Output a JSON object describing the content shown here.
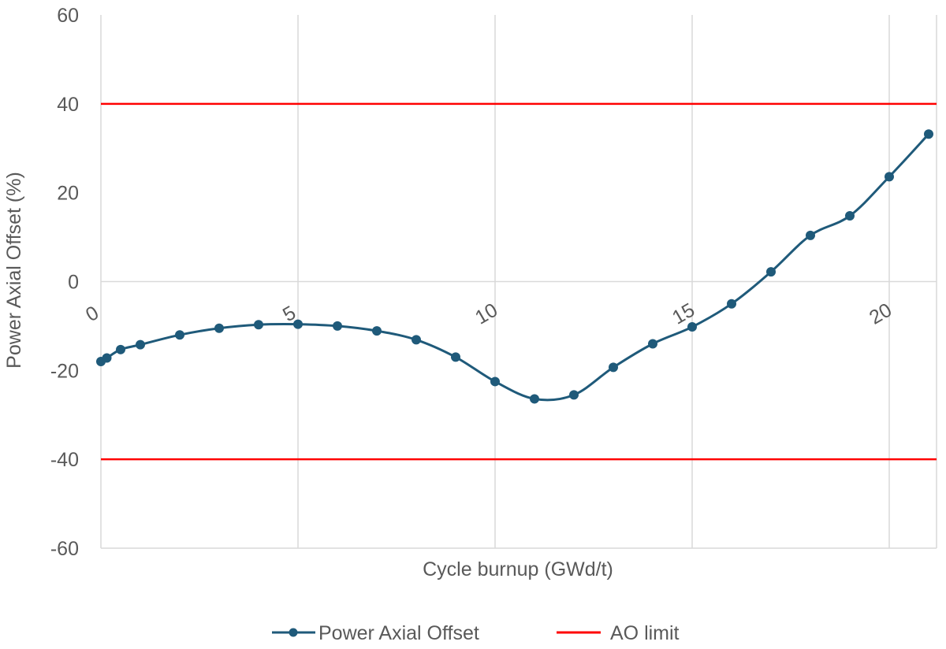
{
  "chart_data": {
    "type": "line",
    "title": "",
    "xlabel": "Cycle burnup (GWd/t)",
    "ylabel": "Power Axial Offset (%)",
    "xlim": [
      0,
      21.2
    ],
    "ylim": [
      -60,
      60
    ],
    "x_ticks": [
      "0",
      "5",
      "10",
      "15",
      "20"
    ],
    "y_ticks": [
      "-60",
      "-40",
      "-20",
      "0",
      "20",
      "40",
      "60"
    ],
    "grid": "vertical",
    "legend_position": "bottom",
    "series": [
      {
        "name": "Power Axial Offset",
        "color": "#1f5a7a",
        "marker": "circle",
        "smooth": true,
        "x": [
          0,
          0.15,
          0.5,
          1,
          2,
          3,
          4,
          5,
          6,
          7,
          8,
          9,
          10,
          11,
          12,
          13,
          14,
          15,
          16,
          17,
          18,
          19,
          20,
          21
        ],
        "y": [
          -18,
          -17.2,
          -15.3,
          -14.2,
          -12,
          -10.5,
          -9.7,
          -9.6,
          -10,
          -11.1,
          -13.1,
          -17,
          -22.5,
          -26.4,
          -25.5,
          -19.3,
          -14,
          -10.2,
          -5,
          2.2,
          10.4,
          14.8,
          23.6,
          33.2
        ]
      },
      {
        "name": "AO limit",
        "color": "#ff0000",
        "marker": "none",
        "x": [
          0,
          21.2
        ],
        "y_values": [
          40,
          -40
        ]
      }
    ]
  }
}
